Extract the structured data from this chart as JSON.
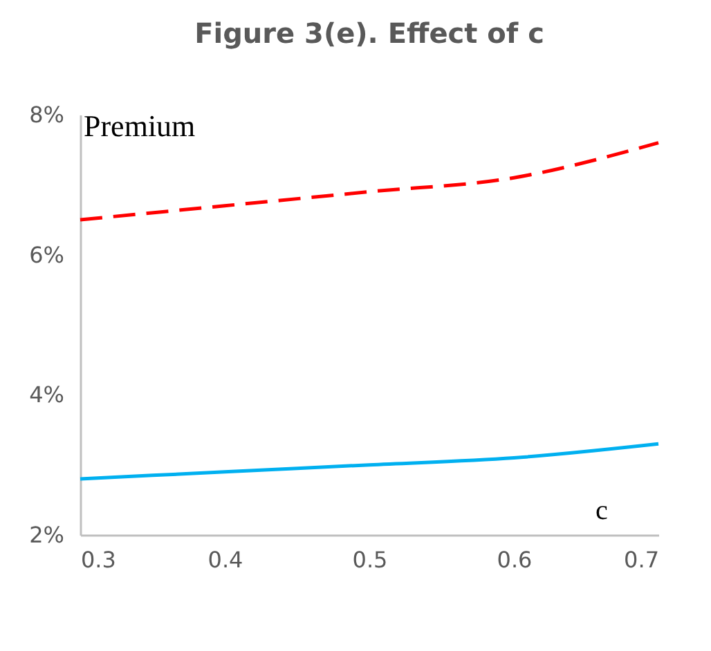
{
  "chart_data": {
    "type": "line",
    "title": "Figure 3(e). Effect of c",
    "xlabel": "c",
    "ylabel": "Premium",
    "x": [
      0.3,
      0.4,
      0.5,
      0.6,
      0.7
    ],
    "series": [
      {
        "color": "#ff0000",
        "line_style": "dashed",
        "values": [
          6.5,
          6.7,
          6.9,
          7.1,
          7.6
        ]
      },
      {
        "color": "#00b0f0",
        "line_style": "solid",
        "values": [
          2.8,
          2.9,
          3.0,
          3.1,
          3.3
        ]
      }
    ],
    "xlim": [
      0.3,
      0.7
    ],
    "xticks": [
      0.3,
      0.4,
      0.5,
      0.6,
      0.7
    ],
    "ylim": [
      2,
      8
    ],
    "yticks": [
      {
        "value": 2,
        "label": "2%"
      },
      {
        "value": 4,
        "label": "4%"
      },
      {
        "value": 6,
        "label": "6%"
      },
      {
        "value": 8,
        "label": "8%"
      }
    ],
    "grid": false,
    "marker": "none"
  }
}
